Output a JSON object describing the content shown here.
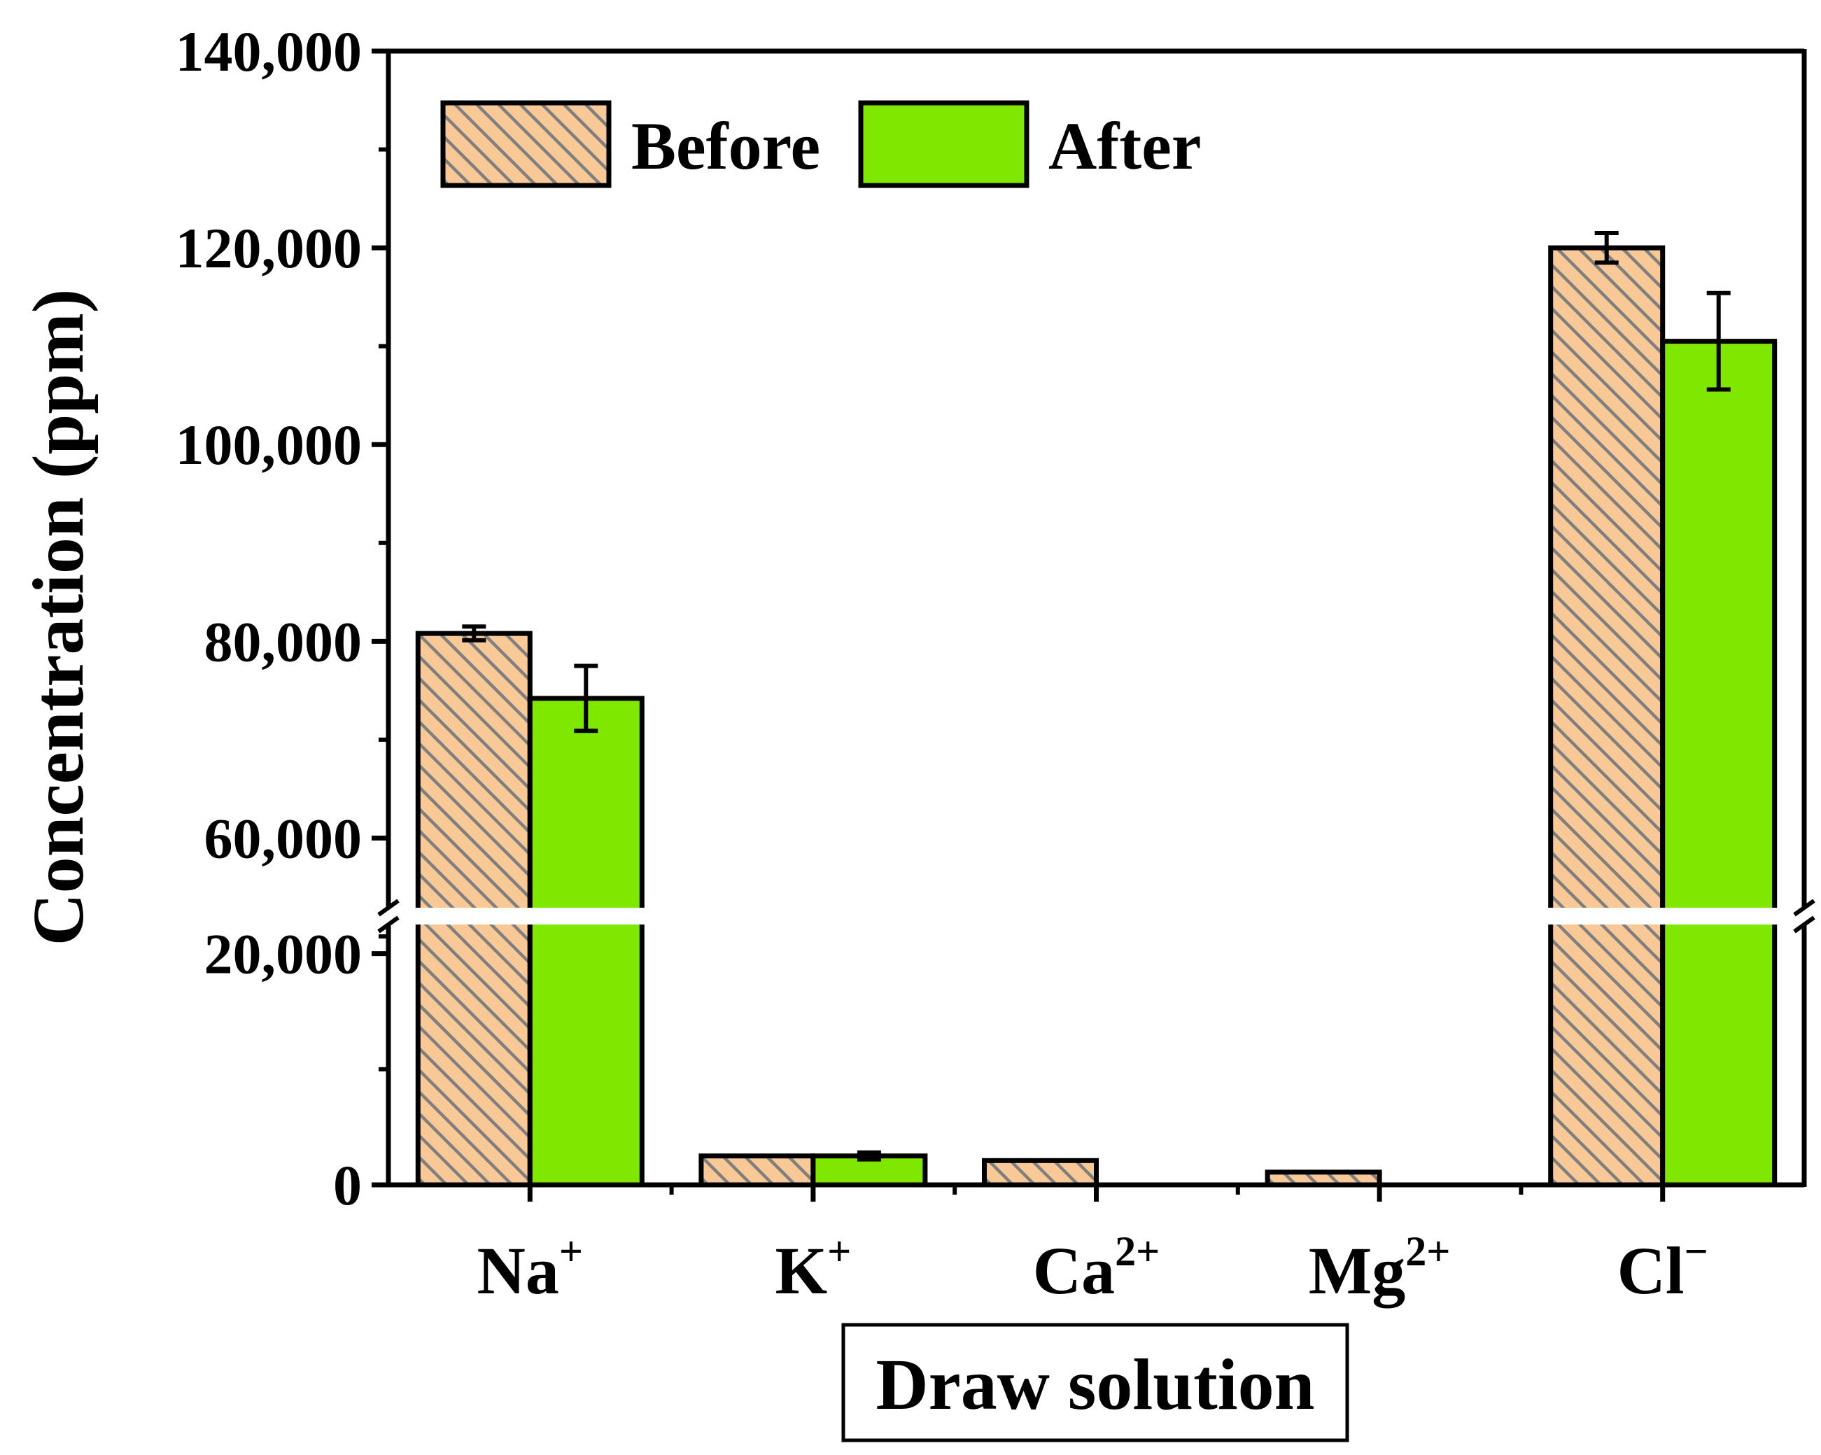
{
  "chart_data": {
    "type": "bar",
    "title": "",
    "xlabel": "Draw solution",
    "ylabel": "Concentration (ppm)",
    "categories": [
      {
        "base": "Na",
        "sup": "+"
      },
      {
        "base": "K",
        "sup": "+"
      },
      {
        "base": "Ca",
        "sup": "2+"
      },
      {
        "base": "Mg",
        "sup": "2+"
      },
      {
        "base": "Cl",
        "sup": "−"
      }
    ],
    "series": [
      {
        "name": "Before",
        "style": "hatched",
        "color": "#f8c997",
        "hatch_color": "#7f7f7f",
        "values": [
          80800,
          2500,
          2100,
          1100,
          120000
        ],
        "errors": [
          700,
          0,
          0,
          0,
          1500
        ]
      },
      {
        "name": "After",
        "style": "solid",
        "color": "#80e800",
        "values": [
          74200,
          2500,
          0,
          0,
          110500
        ],
        "errors": [
          3300,
          300,
          0,
          0,
          4900
        ]
      }
    ],
    "y_axis": {
      "segments": [
        [
          0,
          25000
        ],
        [
          50000,
          140000
        ]
      ],
      "break_between": [
        25000,
        50000
      ],
      "ticks": [
        0,
        20000,
        60000,
        80000,
        100000,
        120000,
        140000
      ],
      "tick_labels": [
        "0",
        "20,000",
        "60,000",
        "80,000",
        "100,000",
        "120,000",
        "140,000"
      ],
      "minor_ticks": [
        10000,
        50000,
        70000,
        90000,
        110000,
        130000
      ]
    },
    "legend": {
      "position": "top-left",
      "entries": [
        "Before",
        "After"
      ]
    },
    "grid": false
  }
}
